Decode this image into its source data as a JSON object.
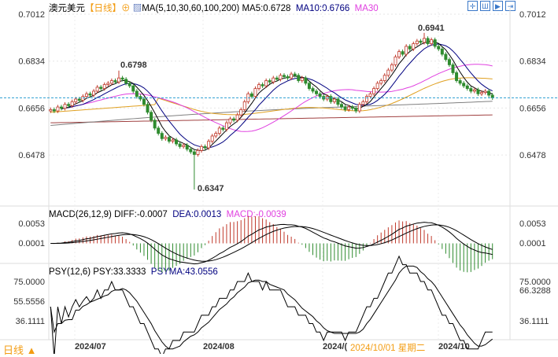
{
  "header": {
    "symbol": "澳元美元",
    "period": "【日线】",
    "ma_label": "MA(5,10,30,60,100,200)",
    "ma5": "MA5:0.6728",
    "ma10": "MA10:0.6766",
    "ma30": "MA30"
  },
  "macd_header": {
    "label": "MACD(26,12,9) DIFF:-0.0007",
    "dea": "DEA:0.0013",
    "macd": "MACD:-0.0039"
  },
  "psy_header": {
    "label": "PSY(12,6) PSY:33.3333",
    "psyma": "PSYMA:43.0556"
  },
  "footer": {
    "period": "日线 ▲",
    "tooltip_date": "2024/10/01 星期二"
  },
  "toolbar_icons": [
    "crosshair-icon",
    "bar-icon",
    "next-icon",
    "end-icon"
  ],
  "colors": {
    "up": "#c0392b",
    "down": "#2e8b2e",
    "ma5": "#000000",
    "ma10": "#000080",
    "ma30": "#e040e0",
    "ma60": "#e0a020",
    "ma100": "#808080",
    "ma200": "#a04040",
    "price_line": "#2a9fd0"
  },
  "chart_data": {
    "type": "candlestick",
    "y_ticks": [
      "0.7012",
      "0.6834",
      "0.6656",
      "0.6478"
    ],
    "ylim": [
      0.63,
      0.7012
    ],
    "x_ticks": [
      "2024/07",
      "2024/08",
      "2024/(",
      "2024/10"
    ],
    "annotations": [
      {
        "text": "0.6798",
        "value": 0.6798
      },
      {
        "text": "0.6347",
        "value": 0.6347
      },
      {
        "text": "0.6941",
        "value": 0.6941
      }
    ],
    "right_label_psy": "66.3288",
    "macd_ticks": [
      "0.0053",
      "0.0001"
    ],
    "psy_ticks": [
      "75.0000",
      "55.5556",
      "36.1111"
    ],
    "closes": [
      0.665,
      0.6645,
      0.666,
      0.6655,
      0.667,
      0.6665,
      0.668,
      0.669,
      0.6685,
      0.67,
      0.671,
      0.6705,
      0.672,
      0.6735,
      0.673,
      0.6745,
      0.675,
      0.676,
      0.6755,
      0.677,
      0.6765,
      0.675,
      0.674,
      0.672,
      0.67,
      0.669,
      0.667,
      0.664,
      0.661,
      0.658,
      0.656,
      0.654,
      0.6545,
      0.653,
      0.6535,
      0.652,
      0.651,
      0.6515,
      0.65,
      0.649,
      0.648,
      0.6495,
      0.651,
      0.6505,
      0.653,
      0.655,
      0.656,
      0.658,
      0.6575,
      0.66,
      0.6615,
      0.661,
      0.663,
      0.665,
      0.668,
      0.671,
      0.67,
      0.673,
      0.6745,
      0.674,
      0.676,
      0.6755,
      0.677,
      0.6765,
      0.678,
      0.6775,
      0.677,
      0.6785,
      0.678,
      0.676,
      0.677,
      0.675,
      0.673,
      0.672,
      0.671,
      0.67,
      0.669,
      0.67,
      0.668,
      0.669,
      0.667,
      0.666,
      0.665,
      0.666,
      0.6655,
      0.6645,
      0.667,
      0.668,
      0.67,
      0.671,
      0.673,
      0.675,
      0.676,
      0.678,
      0.68,
      0.682,
      0.685,
      0.687,
      0.686,
      0.689,
      0.688,
      0.69,
      0.691,
      0.6905,
      0.692,
      0.69,
      0.6915,
      0.689,
      0.688,
      0.686,
      0.684,
      0.682,
      0.679,
      0.676,
      0.675,
      0.674,
      0.673,
      0.672,
      0.6725,
      0.671,
      0.6715,
      0.672,
      0.6705,
      0.6695
    ]
  }
}
